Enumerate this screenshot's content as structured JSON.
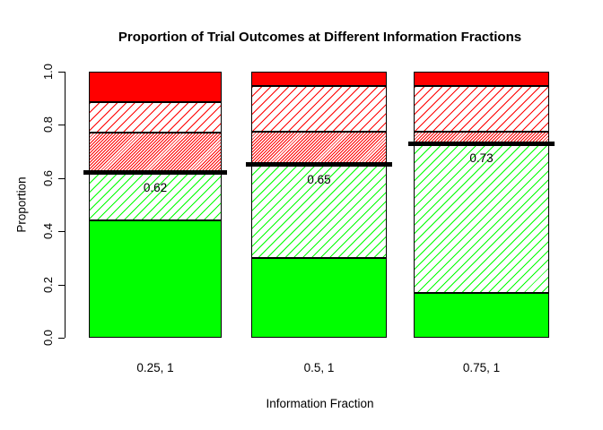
{
  "chart_data": {
    "type": "bar",
    "stacked": true,
    "title": "Proportion of Trial Outcomes at Different Information Fractions",
    "xlabel": "Information Fraction",
    "ylabel": "Proportion",
    "ylim": [
      0,
      1
    ],
    "grid": false,
    "legend": false,
    "ytick_values": [
      0,
      0.2,
      0.4,
      0.6,
      0.8,
      1.0
    ],
    "ytick_labels": [
      "0.0",
      "0.2",
      "0.4",
      "0.6",
      "0.8",
      "1.0"
    ],
    "categories": [
      "0.25, 1",
      "0.5, 1",
      "0.75, 1"
    ],
    "series": [
      {
        "name": "green-solid",
        "pattern": "solid",
        "color": "#00FF00",
        "values": [
          0.44,
          0.3,
          0.17
        ]
      },
      {
        "name": "green-hatched",
        "pattern": "hatch-sparse",
        "color": "#00FF00",
        "values": [
          0.18,
          0.35,
          0.56
        ]
      },
      {
        "name": "red-dense-hatched",
        "pattern": "hatch-dense",
        "color": "#FF0000",
        "values": [
          0.15,
          0.125,
          0.045
        ]
      },
      {
        "name": "red-sparse-hatched",
        "pattern": "hatch-sparse",
        "color": "#FF0000",
        "values": [
          0.115,
          0.17,
          0.17
        ]
      },
      {
        "name": "red-solid",
        "pattern": "solid",
        "color": "#FF0000",
        "values": [
          0.115,
          0.055,
          0.055
        ]
      }
    ],
    "threshold_lines": [
      {
        "category": "0.25, 1",
        "value": 0.62,
        "label": "0.62",
        "color": "#000000"
      },
      {
        "category": "0.5, 1",
        "value": 0.65,
        "label": "0.65",
        "color": "#000000"
      },
      {
        "category": "0.75, 1",
        "value": 0.73,
        "label": "0.73",
        "color": "#000000"
      }
    ],
    "colors": {
      "green": "#00FF00",
      "red": "#FF0000",
      "axis": "#000000",
      "background": "#FFFFFF"
    }
  }
}
